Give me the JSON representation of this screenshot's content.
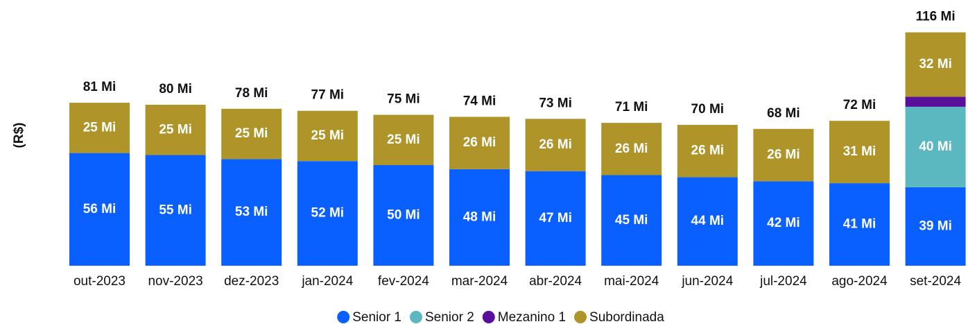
{
  "chart_data": {
    "type": "stacked_bar",
    "y_label": "(R$)",
    "categories": [
      "out-2023",
      "nov-2023",
      "dez-2023",
      "jan-2024",
      "fev-2024",
      "mar-2024",
      "abr-2024",
      "mai-2024",
      "jun-2024",
      "jul-2024",
      "ago-2024",
      "set-2024"
    ],
    "ylim": [
      0,
      120
    ],
    "series": [
      {
        "name": "Senior 1",
        "color": "#0a5fff",
        "values": [
          56,
          55,
          53,
          52,
          50,
          48,
          47,
          45,
          44,
          42,
          41,
          39
        ],
        "value_labels": [
          "56 Mi",
          "55 Mi",
          "53 Mi",
          "52 Mi",
          "50 Mi",
          "48 Mi",
          "47 Mi",
          "45 Mi",
          "44 Mi",
          "42 Mi",
          "41 Mi",
          "39 Mi"
        ]
      },
      {
        "name": "Senior 2",
        "color": "#5cb8c0",
        "values": [
          null,
          null,
          null,
          null,
          null,
          null,
          null,
          null,
          null,
          null,
          null,
          40
        ],
        "value_labels": [
          null,
          null,
          null,
          null,
          null,
          null,
          null,
          null,
          null,
          null,
          null,
          "40 Mi"
        ]
      },
      {
        "name": "Mezanino 1",
        "color": "#5a0f9c",
        "values": [
          null,
          null,
          null,
          null,
          null,
          null,
          null,
          null,
          null,
          null,
          null,
          5
        ]
      },
      {
        "name": "Subordinada",
        "color": "#ae9429",
        "values": [
          25,
          25,
          25,
          25,
          25,
          26,
          26,
          26,
          26,
          26,
          31,
          32
        ],
        "value_labels": [
          "25 Mi",
          "25 Mi",
          "25 Mi",
          "25 Mi",
          "25 Mi",
          "26 Mi",
          "26 Mi",
          "26 Mi",
          "26 Mi",
          "26 Mi",
          "31 Mi",
          "32 Mi"
        ]
      }
    ],
    "totals": [
      81,
      80,
      78,
      77,
      75,
      74,
      73,
      71,
      70,
      68,
      72,
      116
    ],
    "total_labels": [
      "81 Mi",
      "80 Mi",
      "78 Mi",
      "77 Mi",
      "75 Mi",
      "74 Mi",
      "73 Mi",
      "71 Mi",
      "70 Mi",
      "68 Mi",
      "72 Mi",
      "116 Mi"
    ]
  }
}
